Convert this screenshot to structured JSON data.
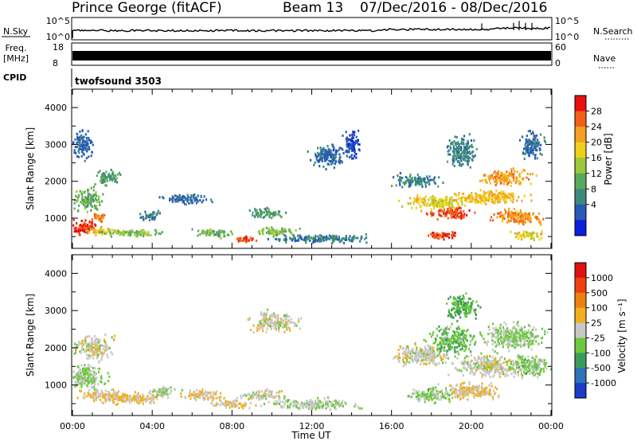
{
  "header": {
    "station": "Prince George (fitACF)",
    "beam": "Beam 13",
    "date_range": "07/Dec/2016 - 08/Dec/2016"
  },
  "aux_panels": {
    "nsky_label": "N.Sky",
    "nsky_ticks": [
      "10^5",
      "10^0"
    ],
    "nsearch_label": "N.Search",
    "nsearch_ticks": [
      "10^5",
      "10^0"
    ],
    "freq_label_line1": "Freq.",
    "freq_label_line2": "[MHz]",
    "freq_ticks": [
      "18",
      "8"
    ],
    "nave_label": "Nave",
    "nave_ticks": [
      "60",
      "0"
    ],
    "cpid_label": "CPID",
    "cpid_value": "twofsound 3503"
  },
  "chart_data": [
    {
      "type": "heatmap",
      "name": "power",
      "ylabel": "Slant Range [km]",
      "xlim": [
        "00:00",
        "00:00"
      ],
      "ylim": [
        180,
        4500
      ],
      "yticks": [
        "1000",
        "2000",
        "3000",
        "4000"
      ],
      "colorbar": {
        "label": "Power [dB]",
        "ticks": [
          "28",
          "24",
          "20",
          "16",
          "12",
          "8",
          "4"
        ],
        "range": [
          0,
          30
        ],
        "colors": [
          "#0a1fe0",
          "#2a5ab8",
          "#3c8a7c",
          "#5aa85a",
          "#9cc83c",
          "#f0d018",
          "#f4a020",
          "#f06018",
          "#e81010"
        ]
      },
      "blobs": [
        {
          "t": 0.6,
          "r": 700,
          "dt": 1.0,
          "dr": 300,
          "v": 28
        },
        {
          "t": 1.2,
          "r": 1000,
          "dt": 0.5,
          "dr": 180,
          "v": 24
        },
        {
          "t": 1.5,
          "r": 600,
          "dt": 1.2,
          "dr": 150,
          "v": 18
        },
        {
          "t": 0.7,
          "r": 1500,
          "dt": 1.0,
          "dr": 400,
          "v": 12
        },
        {
          "t": 1.7,
          "r": 2100,
          "dt": 0.8,
          "dr": 300,
          "v": 10
        },
        {
          "t": 0.5,
          "r": 3000,
          "dt": 0.7,
          "dr": 500,
          "v": 6
        },
        {
          "t": 3.0,
          "r": 550,
          "dt": 2.2,
          "dr": 120,
          "v": 14
        },
        {
          "t": 3.9,
          "r": 1050,
          "dt": 0.7,
          "dr": 200,
          "v": 8
        },
        {
          "t": 5.7,
          "r": 1500,
          "dt": 1.5,
          "dr": 200,
          "v": 6
        },
        {
          "t": 7.0,
          "r": 550,
          "dt": 1.4,
          "dr": 150,
          "v": 12
        },
        {
          "t": 8.7,
          "r": 380,
          "dt": 0.9,
          "dr": 100,
          "v": 26
        },
        {
          "t": 10.2,
          "r": 600,
          "dt": 1.5,
          "dr": 150,
          "v": 14
        },
        {
          "t": 9.7,
          "r": 1100,
          "dt": 1.2,
          "dr": 200,
          "v": 10
        },
        {
          "t": 12.5,
          "r": 400,
          "dt": 3.5,
          "dr": 150,
          "v": 8
        },
        {
          "t": 12.8,
          "r": 2700,
          "dt": 1.2,
          "dr": 400,
          "v": 6
        },
        {
          "t": 14.0,
          "r": 3000,
          "dt": 0.6,
          "dr": 500,
          "v": 4
        },
        {
          "t": 17.2,
          "r": 2000,
          "dt": 1.5,
          "dr": 250,
          "v": 8
        },
        {
          "t": 18.3,
          "r": 1400,
          "dt": 2.2,
          "dr": 250,
          "v": 18
        },
        {
          "t": 19.0,
          "r": 1100,
          "dt": 1.5,
          "dr": 200,
          "v": 26
        },
        {
          "t": 18.5,
          "r": 500,
          "dt": 1.2,
          "dr": 150,
          "v": 26
        },
        {
          "t": 21.0,
          "r": 1550,
          "dt": 2.5,
          "dr": 250,
          "v": 20
        },
        {
          "t": 21.7,
          "r": 2100,
          "dt": 1.7,
          "dr": 300,
          "v": 22
        },
        {
          "t": 22.3,
          "r": 1000,
          "dt": 1.7,
          "dr": 300,
          "v": 22
        },
        {
          "t": 22.8,
          "r": 500,
          "dt": 1.2,
          "dr": 150,
          "v": 18
        },
        {
          "t": 19.5,
          "r": 2800,
          "dt": 1.0,
          "dr": 600,
          "v": 8
        },
        {
          "t": 23.0,
          "r": 3000,
          "dt": 0.8,
          "dr": 500,
          "v": 6
        }
      ]
    },
    {
      "type": "heatmap",
      "name": "velocity",
      "ylabel": "Slant Range [km]",
      "xlabel": "Time UT",
      "xticks": [
        "00:00",
        "04:00",
        "08:00",
        "12:00",
        "16:00",
        "20:00",
        "00:00"
      ],
      "ylim": [
        180,
        4500
      ],
      "yticks": [
        "1000",
        "2000",
        "3000",
        "4000"
      ],
      "colorbar": {
        "label": "Velocity [m s⁻¹]",
        "ticks": [
          "1000",
          "500",
          "100",
          "25",
          "-25",
          "-100",
          "-500",
          "-1000"
        ],
        "range": [
          -1200,
          1200
        ],
        "colors": [
          "#1a3cc8",
          "#2e72b8",
          "#3c9a5a",
          "#6cc83c",
          "#c8c8c8",
          "#f0b020",
          "#f08010",
          "#f04010",
          "#e01010"
        ]
      },
      "blobs": [
        {
          "t": 0.7,
          "r": 1200,
          "dt": 1.2,
          "dr": 500,
          "v": -150
        },
        {
          "t": 1.0,
          "r": 2000,
          "dt": 1.5,
          "dr": 400,
          "v": 0
        },
        {
          "t": 1.5,
          "r": 700,
          "dt": 1.5,
          "dr": 200,
          "v": 120
        },
        {
          "t": 3.0,
          "r": 600,
          "dt": 2.5,
          "dr": 200,
          "v": 150
        },
        {
          "t": 4.5,
          "r": 800,
          "dt": 1.0,
          "dr": 200,
          "v": -100
        },
        {
          "t": 6.5,
          "r": 700,
          "dt": 1.5,
          "dr": 200,
          "v": 150
        },
        {
          "t": 8.0,
          "r": 450,
          "dt": 1.5,
          "dr": 150,
          "v": 120
        },
        {
          "t": 9.5,
          "r": 700,
          "dt": 1.5,
          "dr": 200,
          "v": 0
        },
        {
          "t": 10.0,
          "r": 2700,
          "dt": 1.5,
          "dr": 400,
          "v": 0
        },
        {
          "t": 12.0,
          "r": 450,
          "dt": 3.0,
          "dr": 200,
          "v": -100
        },
        {
          "t": 17.5,
          "r": 1800,
          "dt": 2.0,
          "dr": 400,
          "v": 0
        },
        {
          "t": 18.0,
          "r": 700,
          "dt": 1.5,
          "dr": 300,
          "v": -200
        },
        {
          "t": 19.0,
          "r": 2200,
          "dt": 1.5,
          "dr": 500,
          "v": -300
        },
        {
          "t": 20.0,
          "r": 800,
          "dt": 2.0,
          "dr": 300,
          "v": 150
        },
        {
          "t": 21.0,
          "r": 1500,
          "dt": 2.5,
          "dr": 400,
          "v": 0
        },
        {
          "t": 22.0,
          "r": 2300,
          "dt": 2.0,
          "dr": 500,
          "v": -150
        },
        {
          "t": 23.0,
          "r": 1500,
          "dt": 1.2,
          "dr": 400,
          "v": -200
        },
        {
          "t": 19.5,
          "r": 3100,
          "dt": 1.0,
          "dr": 500,
          "v": -400
        }
      ]
    }
  ]
}
